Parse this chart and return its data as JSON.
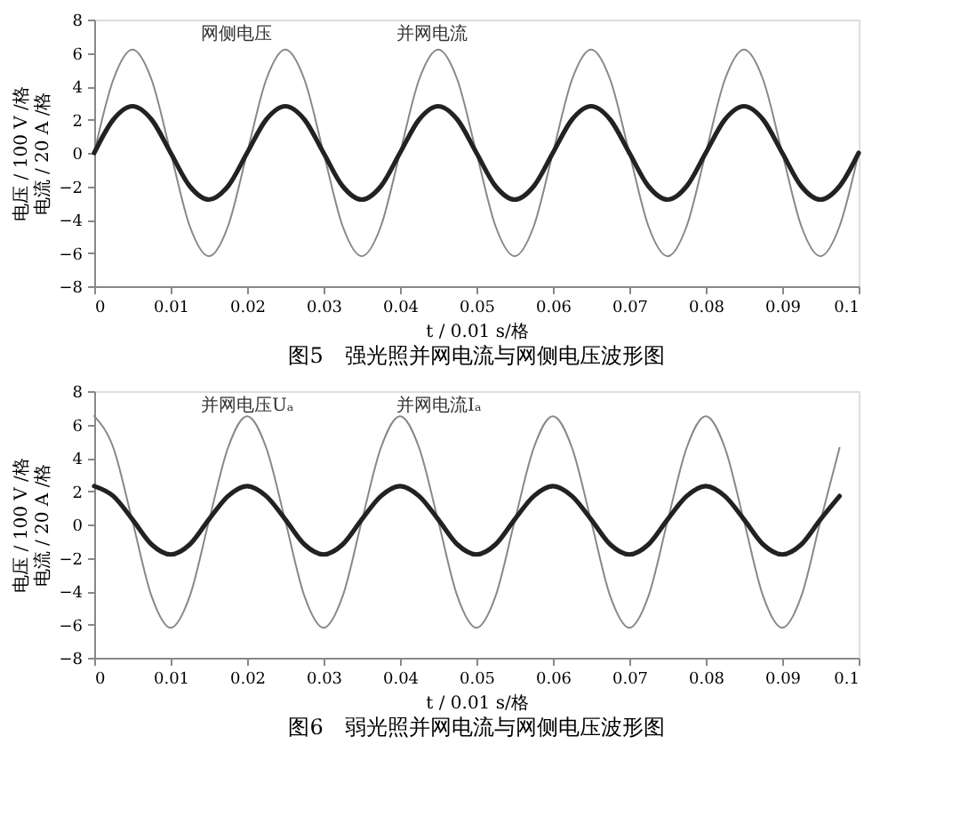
{
  "chart_data": [
    {
      "type": "line",
      "title": "图5　强光照并网电流与网侧电压波形图",
      "xlabel": "t / 0.01 s/格",
      "ylabel": [
        "电压 / 100 V /格",
        "电流 / 20 A /格"
      ],
      "x": [
        0,
        0.0025,
        0.005,
        0.0075,
        0.01,
        0.0125,
        0.015,
        0.0175,
        0.02,
        0.0225,
        0.025,
        0.0275,
        0.03,
        0.0325,
        0.035,
        0.0375,
        0.04,
        0.0425,
        0.045,
        0.0475,
        0.05,
        0.0525,
        0.055,
        0.0575,
        0.06,
        0.0625,
        0.065,
        0.0675,
        0.07,
        0.0725,
        0.075,
        0.0775,
        0.08,
        0.0825,
        0.085,
        0.0875,
        0.09,
        0.0925,
        0.095,
        0.0975,
        0.1
      ],
      "series": [
        {
          "color": "#888888",
          "values": [
            0,
            4.4,
            6.2,
            4.4,
            0,
            -4.4,
            -6.2,
            -4.4,
            0,
            4.4,
            6.2,
            4.4,
            0,
            -4.4,
            -6.2,
            -4.4,
            0,
            4.4,
            6.2,
            4.4,
            0,
            -4.4,
            -6.2,
            -4.4,
            0,
            4.4,
            6.2,
            4.4,
            0,
            -4.4,
            -6.2,
            -4.4,
            0,
            4.4,
            6.2,
            4.4,
            0,
            -4.4,
            -6.2,
            -4.4,
            0
          ]
        },
        {
          "color": "#222222",
          "values": [
            0,
            2.0,
            2.8,
            2.0,
            0,
            -2.0,
            -2.8,
            -2.0,
            0,
            2.0,
            2.8,
            2.0,
            0,
            -2.0,
            -2.8,
            -2.0,
            0,
            2.0,
            2.8,
            2.0,
            0,
            -2.0,
            -2.8,
            -2.0,
            0,
            2.0,
            2.8,
            2.0,
            0,
            -2.0,
            -2.8,
            -2.0,
            0,
            2.0,
            2.8,
            2.0,
            0,
            -2.0,
            -2.8,
            -2.0,
            0
          ]
        }
      ],
      "xlim": [
        0,
        0.1
      ],
      "xticks": [
        0,
        0.01,
        0.02,
        0.03,
        0.04,
        0.05,
        0.06,
        0.07,
        0.08,
        0.09,
        0.1
      ],
      "ylim": [
        -8,
        8
      ],
      "yticks": [
        -8,
        -6,
        -4,
        -2,
        0,
        2,
        4,
        6,
        8
      ],
      "grid": false,
      "marker": "none",
      "line_style": "solid",
      "annotations": [
        "网侧电压",
        "并网电流"
      ]
    },
    {
      "type": "line",
      "title": "图6　弱光照并网电流与网侧电压波形图",
      "xlabel": "t / 0.01 s/格",
      "ylabel": [
        "电压 / 100 V /格",
        "电流 / 20 A /格"
      ],
      "x": [
        0,
        0.0025,
        0.005,
        0.0075,
        0.01,
        0.0125,
        0.015,
        0.0175,
        0.02,
        0.0225,
        0.025,
        0.0275,
        0.03,
        0.0325,
        0.035,
        0.0375,
        0.04,
        0.0425,
        0.045,
        0.0475,
        0.05,
        0.0525,
        0.055,
        0.0575,
        0.06,
        0.0625,
        0.065,
        0.0675,
        0.07,
        0.0725,
        0.075,
        0.0775,
        0.08,
        0.0825,
        0.085,
        0.0875,
        0.09,
        0.0925,
        0.095,
        0.0975
      ],
      "series": [
        {
          "color": "#888888",
          "values": [
            6.5,
            4.6,
            0.2,
            -4.3,
            -6.2,
            -4.3,
            0.2,
            4.6,
            6.5,
            4.6,
            0.2,
            -4.3,
            -6.2,
            -4.3,
            0.2,
            4.6,
            6.5,
            4.6,
            0.2,
            -4.3,
            -6.2,
            -4.3,
            0.2,
            4.6,
            6.5,
            4.6,
            0.2,
            -4.3,
            -6.2,
            -4.3,
            0.2,
            4.6,
            6.5,
            4.6,
            0.2,
            -4.3,
            -6.2,
            -4.3,
            0.2,
            4.6
          ]
        },
        {
          "color": "#222222",
          "values": [
            2.3,
            1.7,
            0.3,
            -1.2,
            -1.8,
            -1.2,
            0.3,
            1.7,
            2.3,
            1.7,
            0.3,
            -1.2,
            -1.8,
            -1.2,
            0.3,
            1.7,
            2.3,
            1.7,
            0.3,
            -1.2,
            -1.8,
            -1.2,
            0.3,
            1.7,
            2.3,
            1.7,
            0.3,
            -1.2,
            -1.8,
            -1.2,
            0.3,
            1.7,
            2.3,
            1.7,
            0.3,
            -1.2,
            -1.8,
            -1.2,
            0.3,
            1.7
          ]
        }
      ],
      "xlim": [
        0,
        0.1
      ],
      "xticks": [
        0,
        0.01,
        0.02,
        0.03,
        0.04,
        0.05,
        0.06,
        0.07,
        0.08,
        0.09,
        0.1
      ],
      "ylim": [
        -8,
        8
      ],
      "yticks": [
        -8,
        -6,
        -4,
        -2,
        0,
        2,
        4,
        6,
        8
      ],
      "grid": false,
      "marker": "none",
      "line_style": "solid",
      "annotations": [
        "并网电压Uₐ",
        "并网电流Iₐ"
      ]
    }
  ]
}
